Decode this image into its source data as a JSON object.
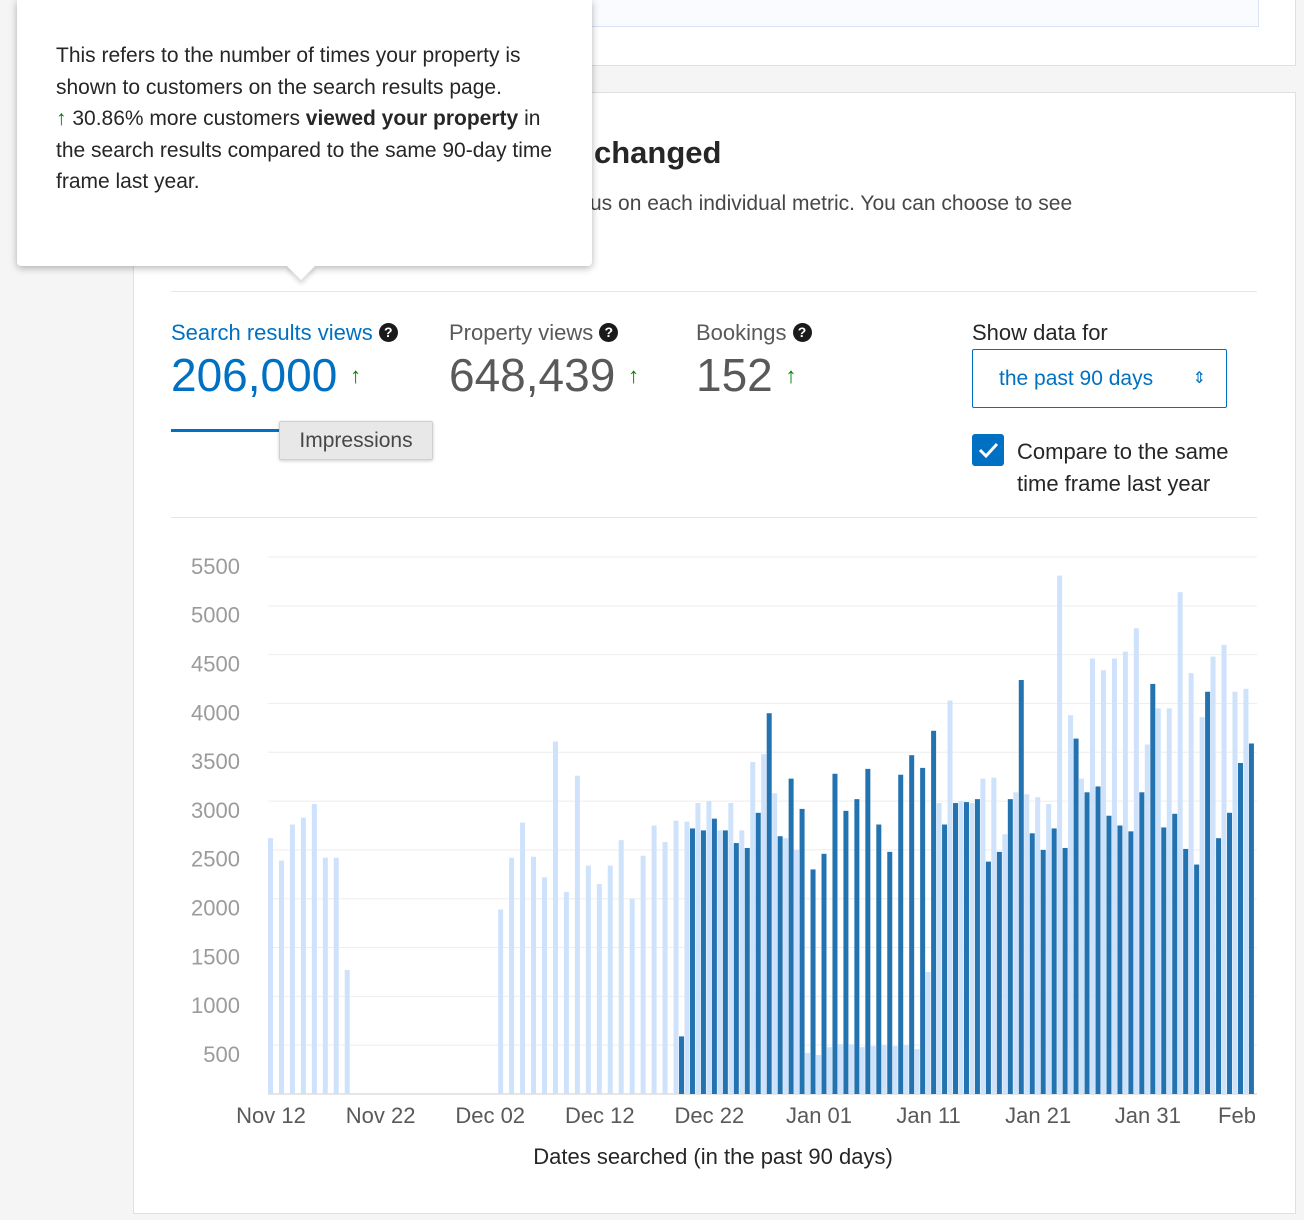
{
  "tooltip": {
    "text": "This refers to the number of times your property is shown to customers on the search results page.",
    "change": "30.86% more customers",
    "bold1": "viewed your",
    "bold2": "property",
    "rest": "in the search results compared to the same 90-day time frame last year."
  },
  "section": {
    "title": "changed",
    "description": "us on each individual metric. You can choose to see"
  },
  "metrics": [
    {
      "label": "Search results views",
      "value": "206,000"
    },
    {
      "label": "Property views",
      "value": "648,439"
    },
    {
      "label": "Bookings",
      "value": "152"
    }
  ],
  "hover_label": "Impressions",
  "controls": {
    "show_label": "Show data for",
    "select": "the past 90 days",
    "checkbox_line1": "Compare to the same",
    "checkbox_line2": "time frame last year"
  },
  "chart_data": {
    "type": "bar",
    "x_label": "Dates searched (in the past 90 days)",
    "categories": [
      "Nov 12",
      null,
      null,
      null,
      null,
      null,
      null,
      null,
      null,
      null,
      "Nov 22",
      null,
      null,
      null,
      null,
      null,
      null,
      null,
      null,
      null,
      "Dec 02",
      null,
      null,
      null,
      null,
      null,
      null,
      null,
      null,
      null,
      "Dec 12",
      null,
      null,
      null,
      null,
      null,
      null,
      null,
      null,
      null,
      "Dec 22",
      null,
      null,
      null,
      null,
      null,
      null,
      null,
      null,
      null,
      "Jan 01",
      null,
      null,
      null,
      null,
      null,
      null,
      null,
      null,
      null,
      "Jan 11",
      null,
      null,
      null,
      null,
      null,
      null,
      null,
      null,
      null,
      "Jan 21",
      null,
      null,
      null,
      null,
      null,
      null,
      null,
      null,
      null,
      "Jan 31",
      null,
      null,
      null,
      null,
      null,
      null,
      null,
      null,
      "Feb"
    ],
    "series": [
      {
        "color": "#cfe2fb",
        "values": [
          2620,
          2390,
          2760,
          2830,
          2970,
          2420,
          2420,
          1270,
          0,
          0,
          0,
          0,
          0,
          0,
          0,
          0,
          0,
          0,
          0,
          0,
          0,
          1890,
          2420,
          2780,
          2430,
          2220,
          3610,
          2070,
          3260,
          2340,
          2150,
          2340,
          2600,
          2000,
          2440,
          2750,
          2580,
          2800,
          2790,
          2980,
          3000,
          2700,
          2980,
          2700,
          3400,
          3480,
          3080,
          2620,
          2500,
          420,
          400,
          480,
          510,
          510,
          480,
          490,
          500,
          490,
          500,
          460,
          1250,
          2980,
          4030,
          3000,
          2980,
          3230,
          3240,
          2660,
          3090,
          3070,
          3040,
          2970,
          5310,
          3880,
          3230,
          4460,
          4340,
          4460,
          4530,
          4770,
          3580,
          3950,
          3950,
          5140,
          4310,
          3860,
          4480,
          4600,
          4120,
          4150
        ]
      },
      {
        "color": "#2373b0",
        "values": [
          0,
          0,
          0,
          0,
          0,
          0,
          0,
          0,
          0,
          0,
          0,
          0,
          0,
          0,
          0,
          0,
          0,
          0,
          0,
          0,
          0,
          0,
          0,
          0,
          0,
          0,
          0,
          0,
          0,
          0,
          0,
          0,
          0,
          0,
          0,
          0,
          0,
          590,
          2720,
          2700,
          2820,
          2700,
          2570,
          2520,
          2880,
          3900,
          2640,
          3230,
          2920,
          2300,
          2460,
          3280,
          2900,
          3020,
          3330,
          2760,
          2480,
          3270,
          3470,
          3340,
          3720,
          2760,
          2980,
          2990,
          3020,
          2380,
          2480,
          3020,
          4240,
          2670,
          2500,
          2720,
          2520,
          3640,
          3090,
          3150,
          2850,
          2750,
          2690,
          3090,
          4200,
          2730,
          2870,
          2510,
          2350,
          4120,
          2620,
          2880,
          3390,
          3590
        ]
      }
    ],
    "ylim": [
      0,
      5500
    ],
    "yticks": [
      500,
      1000,
      1500,
      2000,
      2500,
      3000,
      3500,
      4000,
      4500,
      5000,
      5500
    ],
    "grid": true
  }
}
